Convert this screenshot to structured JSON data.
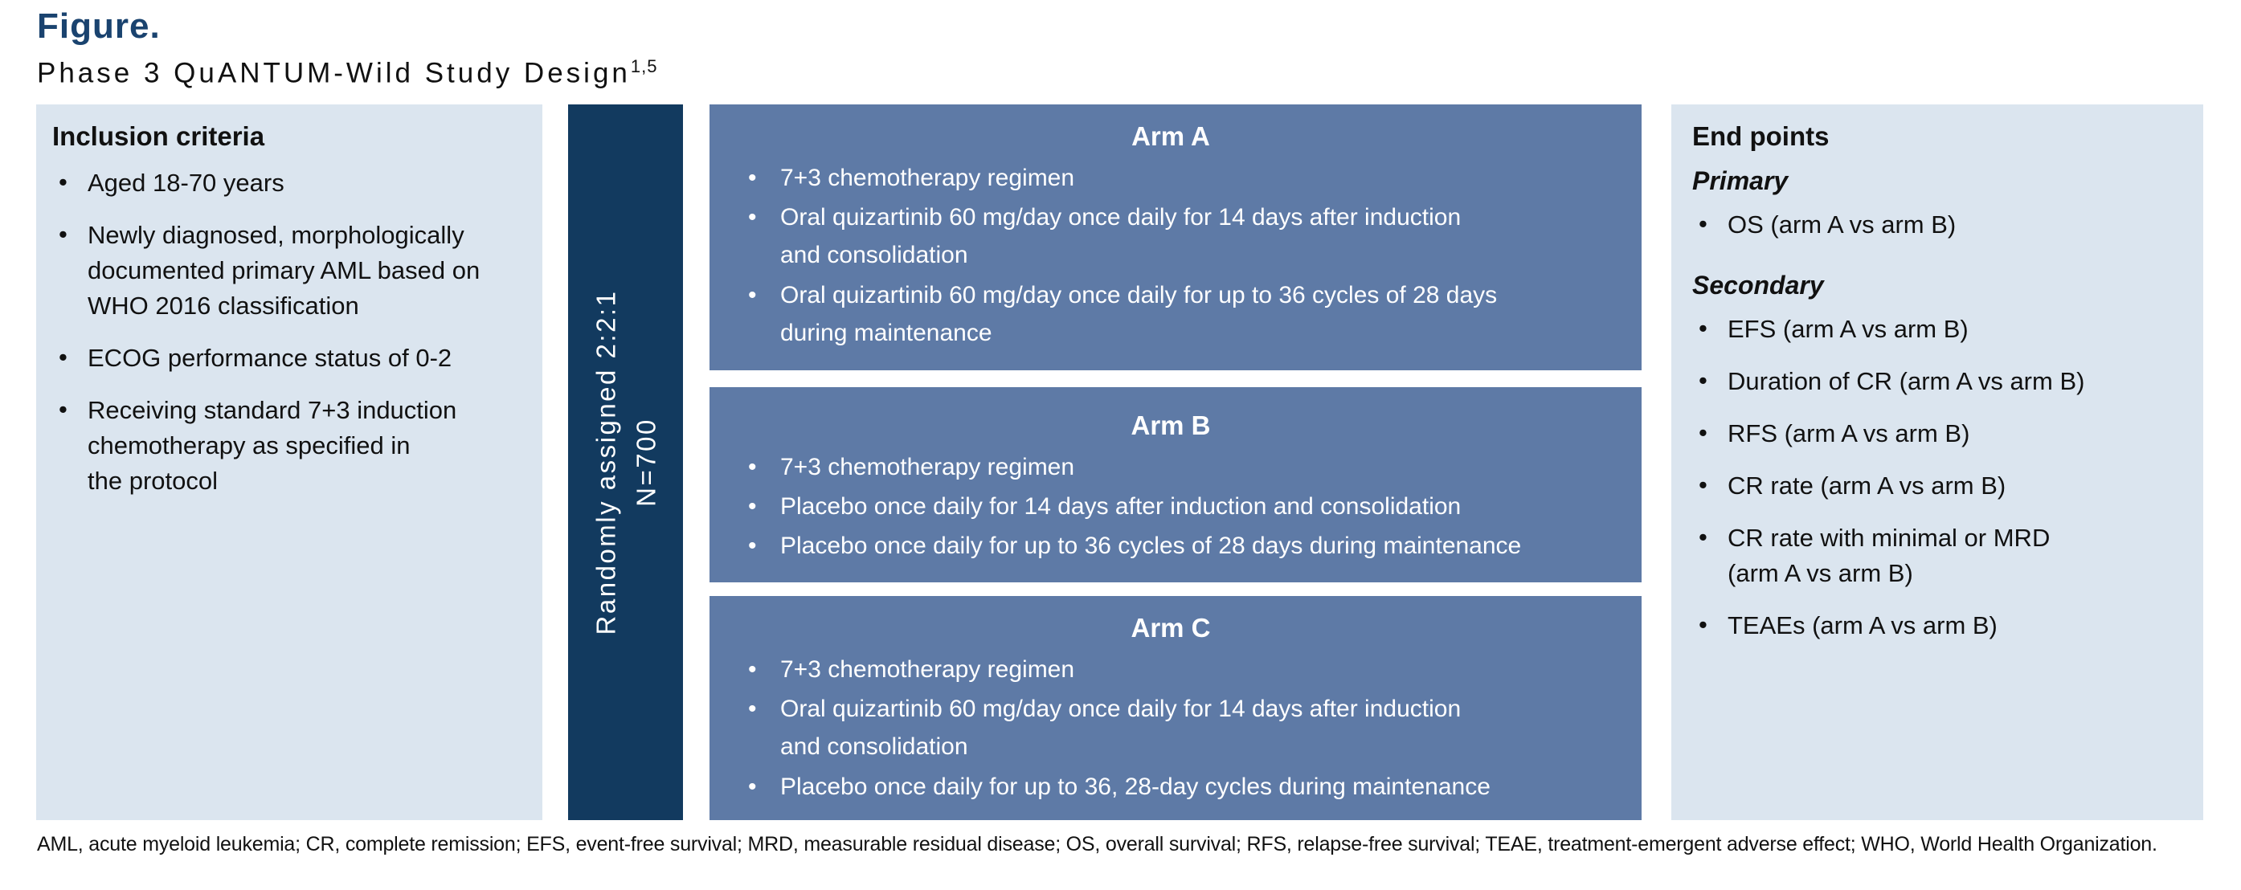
{
  "figure": {
    "label": "Figure.",
    "title": "Phase 3 QuANTUM-Wild Study Design",
    "title_superscript": "1,5"
  },
  "inclusion": {
    "heading": "Inclusion criteria",
    "items": [
      "Aged 18-70 years",
      "Newly diagnosed, morphologically\ndocumented primary AML based on\nWHO 2016 classification",
      "ECOG performance status of 0-2",
      "Receiving standard 7+3 induction\nchemotherapy as specified in\nthe protocol"
    ]
  },
  "randomization": {
    "line1": "Randomly assigned 2:2:1",
    "line2": "N=700"
  },
  "arms": [
    {
      "name": "Arm A",
      "items": [
        "7+3 chemotherapy regimen",
        "Oral quizartinib 60 mg/day once daily for 14 days after induction\nand consolidation",
        "Oral quizartinib 60 mg/day once daily for up to 36 cycles of 28 days\nduring maintenance"
      ]
    },
    {
      "name": "Arm B",
      "items": [
        "7+3 chemotherapy regimen",
        "Placebo once daily for 14 days after induction and consolidation",
        "Placebo once daily for up to 36 cycles of 28 days during maintenance"
      ]
    },
    {
      "name": "Arm C",
      "items": [
        "7+3 chemotherapy regimen",
        "Oral quizartinib 60 mg/day once daily for 14 days after induction\nand consolidation",
        "Placebo once daily for up to 36, 28-day cycles during maintenance"
      ]
    }
  ],
  "endpoints": {
    "heading": "End points",
    "primary_label": "Primary",
    "primary_items": [
      "OS (arm A vs arm B)"
    ],
    "secondary_label": "Secondary",
    "secondary_items": [
      "EFS (arm A vs arm B)",
      "Duration of CR (arm A vs arm B)",
      "RFS (arm A vs arm B)",
      "CR rate (arm A vs arm B)",
      "CR rate with minimal or MRD\n(arm A vs arm B)",
      "TEAEs (arm A vs arm B)"
    ]
  },
  "footnote": "AML, acute myeloid leukemia; CR, complete remission; EFS, event-free survival; MRD, measurable residual disease; OS, overall survival; RFS, relapse-free survival; TEAE, treatment-emergent adverse effect; WHO, World Health Organization.",
  "colors": {
    "navy": "#123a5f",
    "slate_blue": "#5e7aa6",
    "light_blue": "#dbe5ef",
    "figure_label_navy": "#1a436f"
  }
}
